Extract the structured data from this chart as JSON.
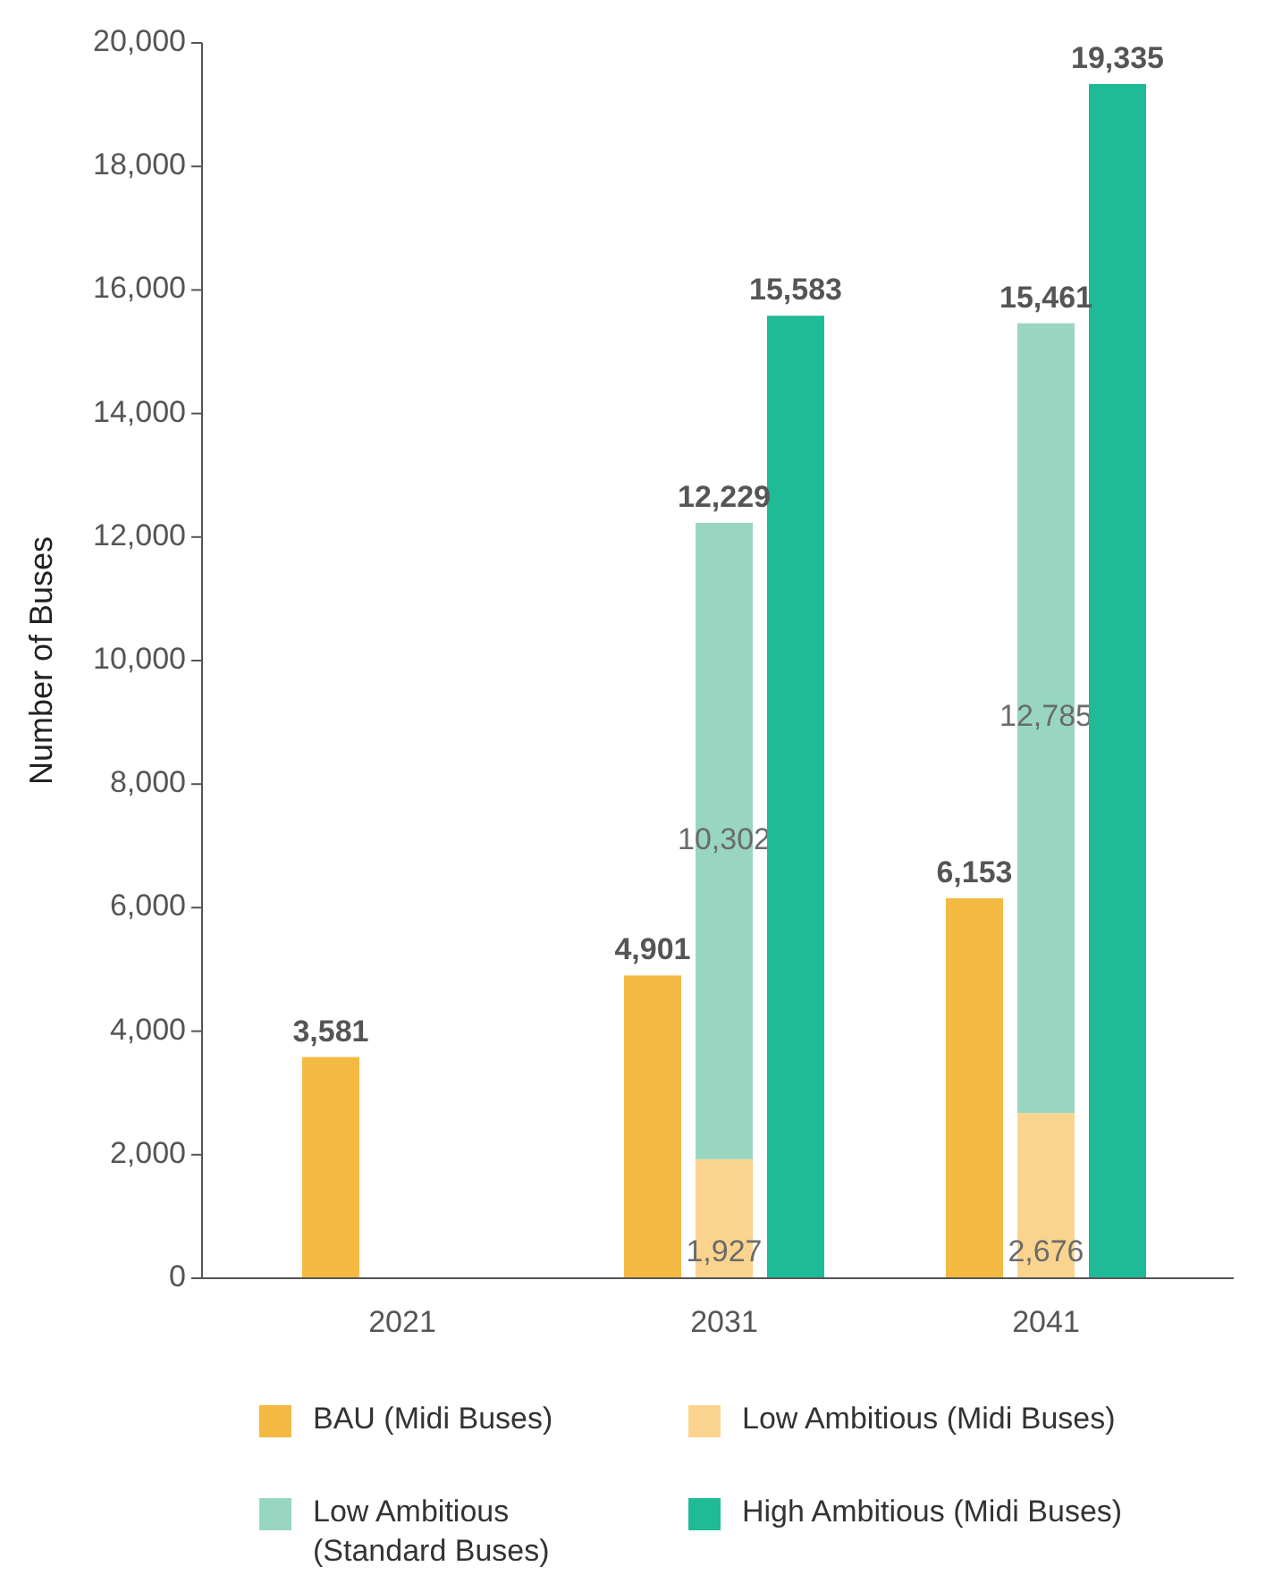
{
  "chart_data": {
    "type": "bar",
    "stacked": true,
    "ylabel": "Number of Buses",
    "categories": [
      null,
      "2021",
      null,
      null,
      "2031",
      null,
      null,
      "2041",
      null
    ],
    "series": [
      {
        "name": "BAU (Midi Buses)",
        "color": "#f4b942",
        "values": [
          3581,
          null,
          null,
          4901,
          null,
          null,
          6153,
          null,
          null
        ],
        "value_labels": [
          "3,581",
          null,
          null,
          "4,901",
          null,
          null,
          "6,153",
          null,
          null
        ]
      },
      {
        "name": "Low Ambitious (Midi Buses)",
        "color": "#fad48f",
        "values": [
          null,
          null,
          null,
          null,
          1927,
          null,
          null,
          2676,
          null
        ],
        "value_labels": [
          null,
          null,
          null,
          null,
          "1,927",
          null,
          null,
          "2,676",
          null
        ]
      },
      {
        "name": "Low Ambitious (Standard Buses)",
        "color": "#98d6c2",
        "values": [
          null,
          null,
          null,
          null,
          10302,
          null,
          null,
          12785,
          null
        ],
        "value_labels": [
          null,
          null,
          null,
          null,
          "10,302",
          null,
          null,
          "12,785",
          null
        ]
      },
      {
        "name": "High Ambitious (Midi Buses)",
        "color": "#1fba96",
        "values": [
          null,
          null,
          null,
          null,
          null,
          15583,
          null,
          null,
          19335
        ],
        "value_labels": [
          null,
          null,
          null,
          null,
          null,
          "15,583",
          null,
          null,
          "19,335"
        ]
      }
    ],
    "totals": [
      null,
      null,
      null,
      null,
      "12,229",
      null,
      null,
      "15,461",
      null
    ],
    "ylim": [
      0,
      20000
    ],
    "yticks": [
      {
        "value": 0,
        "label": "0"
      },
      {
        "value": 2000,
        "label": "2,000"
      },
      {
        "value": 4000,
        "label": "4,000"
      },
      {
        "value": 6000,
        "label": "6,000"
      },
      {
        "value": 8000,
        "label": "8,000"
      },
      {
        "value": 10000,
        "label": "10,000"
      },
      {
        "value": 12000,
        "label": "12,000"
      },
      {
        "value": 14000,
        "label": "14,000"
      },
      {
        "value": 16000,
        "label": "16,000"
      },
      {
        "value": 18000,
        "label": "18,000"
      },
      {
        "value": 20000,
        "label": "20,000"
      }
    ],
    "legend": "bottom"
  }
}
